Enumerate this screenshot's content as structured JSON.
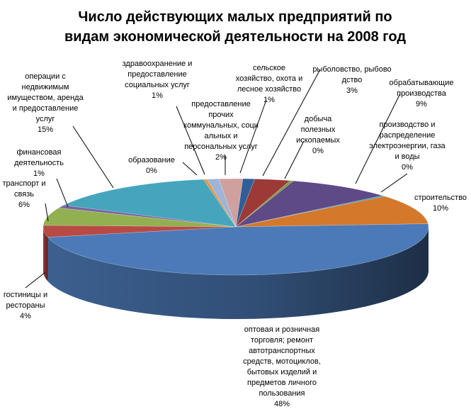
{
  "chart_data": {
    "type": "pie",
    "title_lines": [
      "Число действующих малых предприятий по",
      "видам экономической деятельности на 2008 год"
    ],
    "unit": "%",
    "slices": [
      {
        "label_lines": [
          "сельское",
          "хозяйство, охота и",
          "лесное хозяйство"
        ],
        "value_text": "1%",
        "value": 1,
        "color": "#2e5f98"
      },
      {
        "label_lines": [
          "рыболовство, рыбово",
          "дство"
        ],
        "value_text": "3%",
        "value": 3,
        "color": "#9b3a36"
      },
      {
        "label_lines": [
          "добыча",
          "полезных",
          "ископаемых"
        ],
        "value_text": "0%",
        "value": 0.3,
        "color": "#7e9a3f"
      },
      {
        "label_lines": [
          "обрабатывающие",
          "производства"
        ],
        "value_text": "9%",
        "value": 9,
        "color": "#5e4a86"
      },
      {
        "label_lines": [
          "производство и",
          "распределение",
          "электроэнергии, газа",
          "и воды"
        ],
        "value_text": "0%",
        "value": 0.3,
        "color": "#2a90ad"
      },
      {
        "label_lines": [
          "строительство"
        ],
        "value_text": "10%",
        "value": 10,
        "color": "#d4782c"
      },
      {
        "label_lines": [
          "оптовая и розничная",
          "торговля; ремонт",
          "автотранспортных",
          "средств, мотоциклов,",
          "бытовых изделий и",
          "предметов личного",
          "пользования"
        ],
        "value_text": "48%",
        "value": 48,
        "color": "#4c7ab8"
      },
      {
        "label_lines": [
          "гостиницы и",
          "рестораны"
        ],
        "value_text": "4%",
        "value": 4,
        "color": "#b84a46"
      },
      {
        "label_lines": [
          "транспорт и",
          "связь"
        ],
        "value_text": "6%",
        "value": 6,
        "color": "#92b050"
      },
      {
        "label_lines": [
          "финансовая",
          "деятельность"
        ],
        "value_text": "1%",
        "value": 1,
        "color": "#7a64a0"
      },
      {
        "label_lines": [
          "операции с",
          "недвижимым",
          "имуществом, аренда",
          "и предоставление",
          "услуг"
        ],
        "value_text": "15%",
        "value": 15,
        "color": "#45a5bd"
      },
      {
        "label_lines": [
          "образование"
        ],
        "value_text": "0%",
        "value": 0.3,
        "color": "#e8943e"
      },
      {
        "label_lines": [
          "здравоохранение и",
          "предоставление",
          "социальных услуг"
        ],
        "value_text": "1%",
        "value": 1,
        "color": "#9eb3d6"
      },
      {
        "label_lines": [
          "предоставление",
          "прочих",
          "коммунальных, соци",
          "альных и",
          "персональных услуг"
        ],
        "value_text": "2%",
        "value": 2,
        "color": "#cfa09e"
      }
    ]
  }
}
